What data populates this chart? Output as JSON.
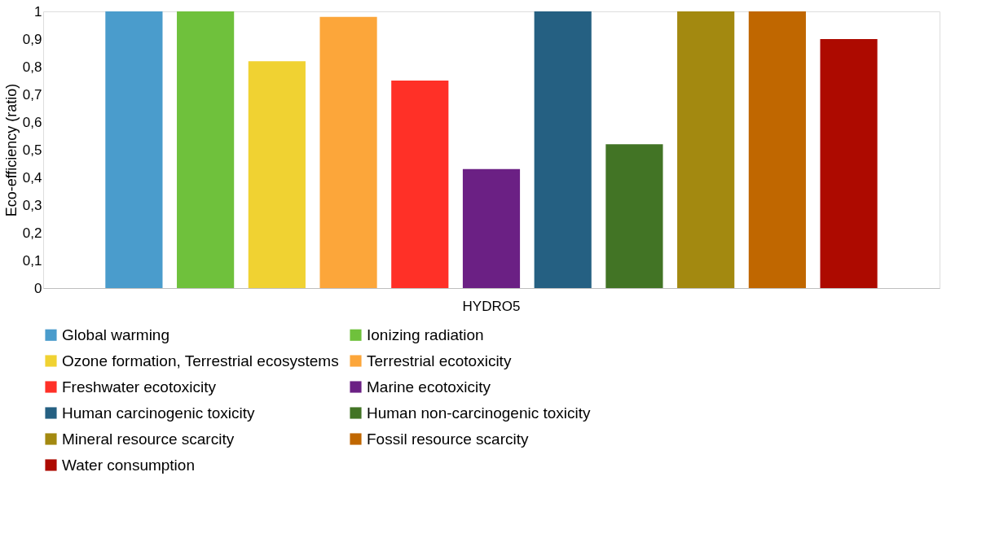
{
  "chart_data": {
    "type": "bar",
    "categories": [
      "HYDRO5"
    ],
    "ylabel": "Eco-efficiency (ratio)",
    "ylim": [
      0,
      1
    ],
    "yticks": [
      0,
      {
        "value": 0.1,
        "label": "0,1"
      },
      {
        "value": 0.2,
        "label": "0,2"
      },
      {
        "value": 0.3,
        "label": "0,3"
      },
      {
        "value": 0.4,
        "label": "0,4"
      },
      {
        "value": 0.5,
        "label": "0,5"
      },
      {
        "value": 0.6,
        "label": "0,6"
      },
      {
        "value": 0.7,
        "label": "0,7"
      },
      {
        "value": 0.8,
        "label": "0,8"
      },
      {
        "value": 0.9,
        "label": "0,9"
      },
      1
    ],
    "grid": false,
    "legend": "bottom",
    "series": [
      {
        "name": "Global warming",
        "color": "#4a9ccc",
        "values": [
          1
        ]
      },
      {
        "name": "Ionizing radiation",
        "color": "#6fc13c",
        "values": [
          1
        ]
      },
      {
        "name": "Ozone formation, Terrestrial ecosystems",
        "color": "#f0d232",
        "values": [
          0.82
        ]
      },
      {
        "name": "Terrestrial ecotoxicity",
        "color": "#fca63a",
        "values": [
          0.98
        ]
      },
      {
        "name": "Freshwater ecotoxicity",
        "color": "#ff3027",
        "values": [
          0.75
        ]
      },
      {
        "name": "Marine ecotoxicity",
        "color": "#6b2084",
        "values": [
          0.43
        ]
      },
      {
        "name": "Human carcinogenic toxicity",
        "color": "#256082",
        "values": [
          1
        ]
      },
      {
        "name": "Human non-carcinogenic toxicity",
        "color": "#427425",
        "values": [
          0.52
        ]
      },
      {
        "name": "Mineral resource scarcity",
        "color": "#a38910",
        "values": [
          1
        ]
      },
      {
        "name": "Fossil resource scarcity",
        "color": "#c06700",
        "values": [
          1
        ]
      },
      {
        "name": "Water consumption",
        "color": "#ad0a00",
        "values": [
          0.9
        ]
      }
    ]
  }
}
